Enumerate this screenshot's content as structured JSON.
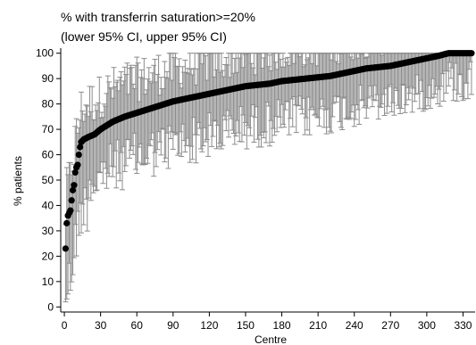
{
  "chart_data": {
    "type": "scatter",
    "title": "% with transferrin saturation>=20%",
    "subtitle": "(lower 95% CI, upper 95% CI)",
    "xlabel": "Centre",
    "ylabel": "% patients",
    "xlim": [
      -3,
      340
    ],
    "ylim": [
      -2,
      102
    ],
    "x_ticks": [
      "0",
      "30",
      "60",
      "90",
      "120",
      "150",
      "180",
      "210",
      "240",
      "270",
      "300",
      "330"
    ],
    "y_ticks": [
      "0",
      "10",
      "20",
      "30",
      "40",
      "50",
      "60",
      "70",
      "80",
      "90",
      "100"
    ],
    "grid": false,
    "legend": "none",
    "n_centres": 337,
    "series": [
      {
        "values_note_free": true,
        "anchor_points": [
          [
            1,
            23
          ],
          [
            2,
            33
          ],
          [
            3,
            36
          ],
          [
            4,
            37
          ],
          [
            5,
            38
          ],
          [
            6,
            42
          ],
          [
            7,
            46
          ],
          [
            8,
            48
          ],
          [
            9,
            53
          ],
          [
            10,
            55
          ],
          [
            11,
            56
          ],
          [
            12,
            60
          ],
          [
            13,
            63
          ],
          [
            14,
            65
          ],
          [
            16,
            66
          ],
          [
            20,
            67
          ],
          [
            25,
            68
          ],
          [
            30,
            70
          ],
          [
            40,
            73
          ],
          [
            50,
            75
          ],
          [
            60,
            76.5
          ],
          [
            70,
            78
          ],
          [
            80,
            79.5
          ],
          [
            90,
            81
          ],
          [
            100,
            82
          ],
          [
            110,
            83
          ],
          [
            120,
            84
          ],
          [
            130,
            85
          ],
          [
            140,
            86
          ],
          [
            150,
            87
          ],
          [
            160,
            87.5
          ],
          [
            170,
            88
          ],
          [
            180,
            89
          ],
          [
            190,
            89.5
          ],
          [
            200,
            90
          ],
          [
            210,
            90.5
          ],
          [
            220,
            91
          ],
          [
            230,
            92
          ],
          [
            240,
            93
          ],
          [
            250,
            94
          ],
          [
            260,
            94.5
          ],
          [
            270,
            95
          ],
          [
            280,
            96
          ],
          [
            290,
            97
          ],
          [
            300,
            98
          ],
          [
            310,
            99
          ],
          [
            318,
            100
          ],
          [
            337,
            100
          ]
        ]
      }
    ],
    "colors": {
      "points": "#000000",
      "error_bars": "#8c8c8c",
      "axis": "#000000"
    }
  }
}
